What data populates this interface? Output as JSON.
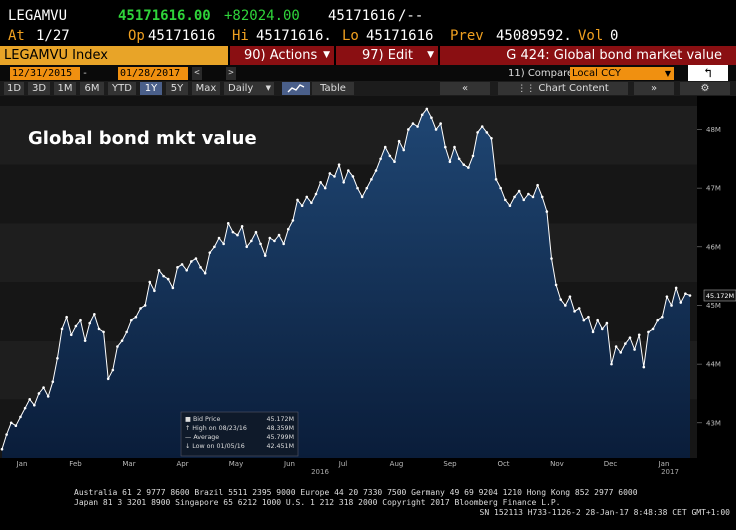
{
  "quote": {
    "ticker": "LEGAMVU",
    "last": "45171616.00",
    "change": "+82024.00",
    "last2": "45171616",
    "suffix": "/--",
    "at_label": "At",
    "at_value": "1/27",
    "op_label": "Op",
    "op_value": "45171616",
    "hi_label": "Hi",
    "hi_value": "45171616.",
    "lo_label": "Lo",
    "lo_value": "45171616",
    "prev_label": "Prev",
    "prev_value": "45089592.",
    "vol_label": "Vol",
    "vol_value": "0"
  },
  "menu": {
    "security": "LEGAMVU Index",
    "actions_num": "90",
    "actions": "Actions",
    "edit_num": "97",
    "edit": "Edit",
    "page": "G 424: Global bond market value"
  },
  "controls": {
    "start_date": "12/31/2015",
    "end_date": "01/28/2017",
    "compare_num": "11)",
    "compare": "Compare",
    "currency": "Local CCY"
  },
  "ranges": [
    "1D",
    "3D",
    "1M",
    "6M",
    "YTD",
    "1Y",
    "5Y",
    "Max"
  ],
  "selected_range": "1Y",
  "frequency": "Daily",
  "view_table": "Table",
  "chart_content": "Chart Content",
  "colors": {
    "accent": "#f09010",
    "menu_red": "#8a0f12",
    "area_top": "#1d3f66",
    "area_bottom": "#0a1c38"
  },
  "chart_data": {
    "type": "area",
    "title": "Global bond mkt value",
    "xlabel": "",
    "ylabel": "",
    "x_ticks": [
      "Jan",
      "Feb",
      "Mar",
      "Apr",
      "May",
      "Jun",
      "Jul",
      "Aug",
      "Sep",
      "Oct",
      "Nov",
      "Dec",
      "Jan"
    ],
    "year_labels": [
      "2016",
      "2017"
    ],
    "y_ticks": [
      "43M",
      "44M",
      "45M",
      "46M",
      "47M",
      "48M"
    ],
    "ylim": [
      42.4,
      48.4
    ],
    "last_value_label": "45.172M",
    "series": [
      {
        "name": "Bid Price",
        "values": [
          42.55,
          42.8,
          43.0,
          42.95,
          43.1,
          43.25,
          43.4,
          43.3,
          43.5,
          43.6,
          43.45,
          43.7,
          44.1,
          44.6,
          44.8,
          44.5,
          44.65,
          44.75,
          44.4,
          44.7,
          44.85,
          44.6,
          44.55,
          43.75,
          43.9,
          44.3,
          44.4,
          44.55,
          44.75,
          44.8,
          44.95,
          45.0,
          45.4,
          45.25,
          45.6,
          45.5,
          45.45,
          45.3,
          45.65,
          45.7,
          45.6,
          45.75,
          45.8,
          45.65,
          45.55,
          45.9,
          46.0,
          46.15,
          46.05,
          46.4,
          46.25,
          46.2,
          46.35,
          46.0,
          46.1,
          46.25,
          46.05,
          45.85,
          46.15,
          46.1,
          46.2,
          46.05,
          46.3,
          46.45,
          46.8,
          46.7,
          46.85,
          46.75,
          46.9,
          47.1,
          47.0,
          47.25,
          47.2,
          47.4,
          47.1,
          47.3,
          47.2,
          47.0,
          46.85,
          47.0,
          47.15,
          47.3,
          47.5,
          47.7,
          47.55,
          47.45,
          47.8,
          47.65,
          48.0,
          48.1,
          48.05,
          48.25,
          48.35,
          48.2,
          48.0,
          48.1,
          47.7,
          47.45,
          47.7,
          47.5,
          47.4,
          47.35,
          47.55,
          47.95,
          48.05,
          47.95,
          47.85,
          47.15,
          47.0,
          46.8,
          46.7,
          46.85,
          46.95,
          46.8,
          46.9,
          46.85,
          47.05,
          46.85,
          46.6,
          45.8,
          45.35,
          45.1,
          45.0,
          45.15,
          44.9,
          44.95,
          44.75,
          44.8,
          44.55,
          44.75,
          44.6,
          44.7,
          44.0,
          44.3,
          44.2,
          44.35,
          44.45,
          44.25,
          44.5,
          43.95,
          44.55,
          44.6,
          44.75,
          44.8,
          45.15,
          45.0,
          45.3,
          45.05,
          45.2,
          45.17
        ]
      }
    ],
    "legend": [
      {
        "label": "Bid Price",
        "value": "45.172M"
      },
      {
        "label": "High on 08/23/16",
        "value": "48.359M"
      },
      {
        "label": "Average",
        "value": "45.799M"
      },
      {
        "label": "Low on 01/05/16",
        "value": "42.451M"
      }
    ]
  },
  "footer": {
    "line1": "Australia 61 2 9777 8600 Brazil 5511 2395 9000 Europe 44 20 7330 7500 Germany 49 69 9204 1210 Hong Kong 852 2977 6000",
    "line2": "Japan 81 3 3201 8900       Singapore 65 6212 1000       U.S. 1 212 318 2000          Copyright 2017 Bloomberg Finance L.P.",
    "line3": "SN 152113 H733-1126-2 28-Jan-17  8:48:38 CET  GMT+1:00"
  }
}
